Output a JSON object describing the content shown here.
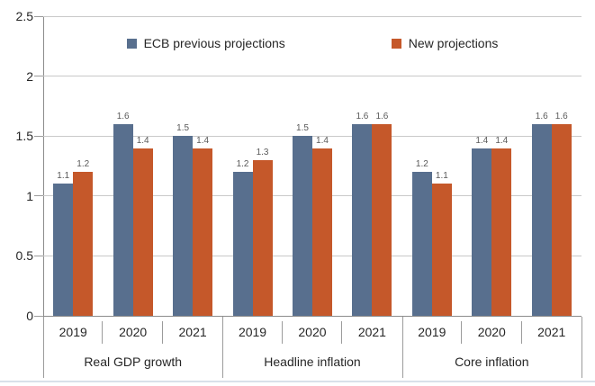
{
  "chart_data": {
    "type": "bar",
    "title": "",
    "groups": [
      "Real GDP growth",
      "Headline inflation",
      "Core inflation"
    ],
    "categories": [
      "2019",
      "2020",
      "2021"
    ],
    "series": [
      {
        "name": "ECB previous projections",
        "color": "#586f8e",
        "values": [
          1.1,
          1.6,
          1.5,
          1.2,
          1.5,
          1.6,
          1.2,
          1.4,
          1.6
        ]
      },
      {
        "name": "New projections",
        "color": "#c5582a",
        "values": [
          1.2,
          1.4,
          1.4,
          1.3,
          1.4,
          1.6,
          1.1,
          1.4,
          1.6
        ]
      }
    ],
    "ylim": [
      0,
      2.5
    ],
    "yticks": [
      0,
      0.5,
      1,
      1.5,
      2,
      2.5
    ],
    "ytick_labels": [
      "0",
      "0.5",
      "1",
      "1.5",
      "2",
      "2.5"
    ],
    "grid": true,
    "legend_position": "top",
    "data_labels": true
  },
  "colors": {
    "gridline": "#c9c9c9",
    "axis_line": "#8c8c8c",
    "separator": "#9b9b9b",
    "text": "#262626",
    "data_label": "#595959",
    "bottom_strip": "#d9e1ea"
  }
}
